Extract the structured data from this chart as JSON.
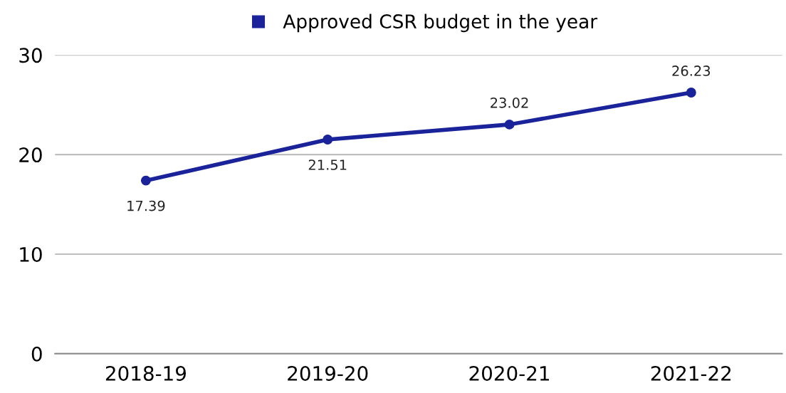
{
  "chart_data": {
    "type": "line",
    "categories": [
      "2018-19",
      "2019-20",
      "2020-21",
      "2021-22"
    ],
    "series": [
      {
        "name": "Approved CSR budget in the year",
        "color": "#1a2399",
        "values": [
          17.39,
          21.51,
          23.02,
          26.23
        ]
      }
    ],
    "ylim": [
      0,
      30
    ],
    "yticks": [
      0,
      10,
      20,
      30
    ],
    "grid": "y",
    "legend": "top",
    "marker": "circle",
    "line_style": "solid",
    "data_labels": true
  }
}
